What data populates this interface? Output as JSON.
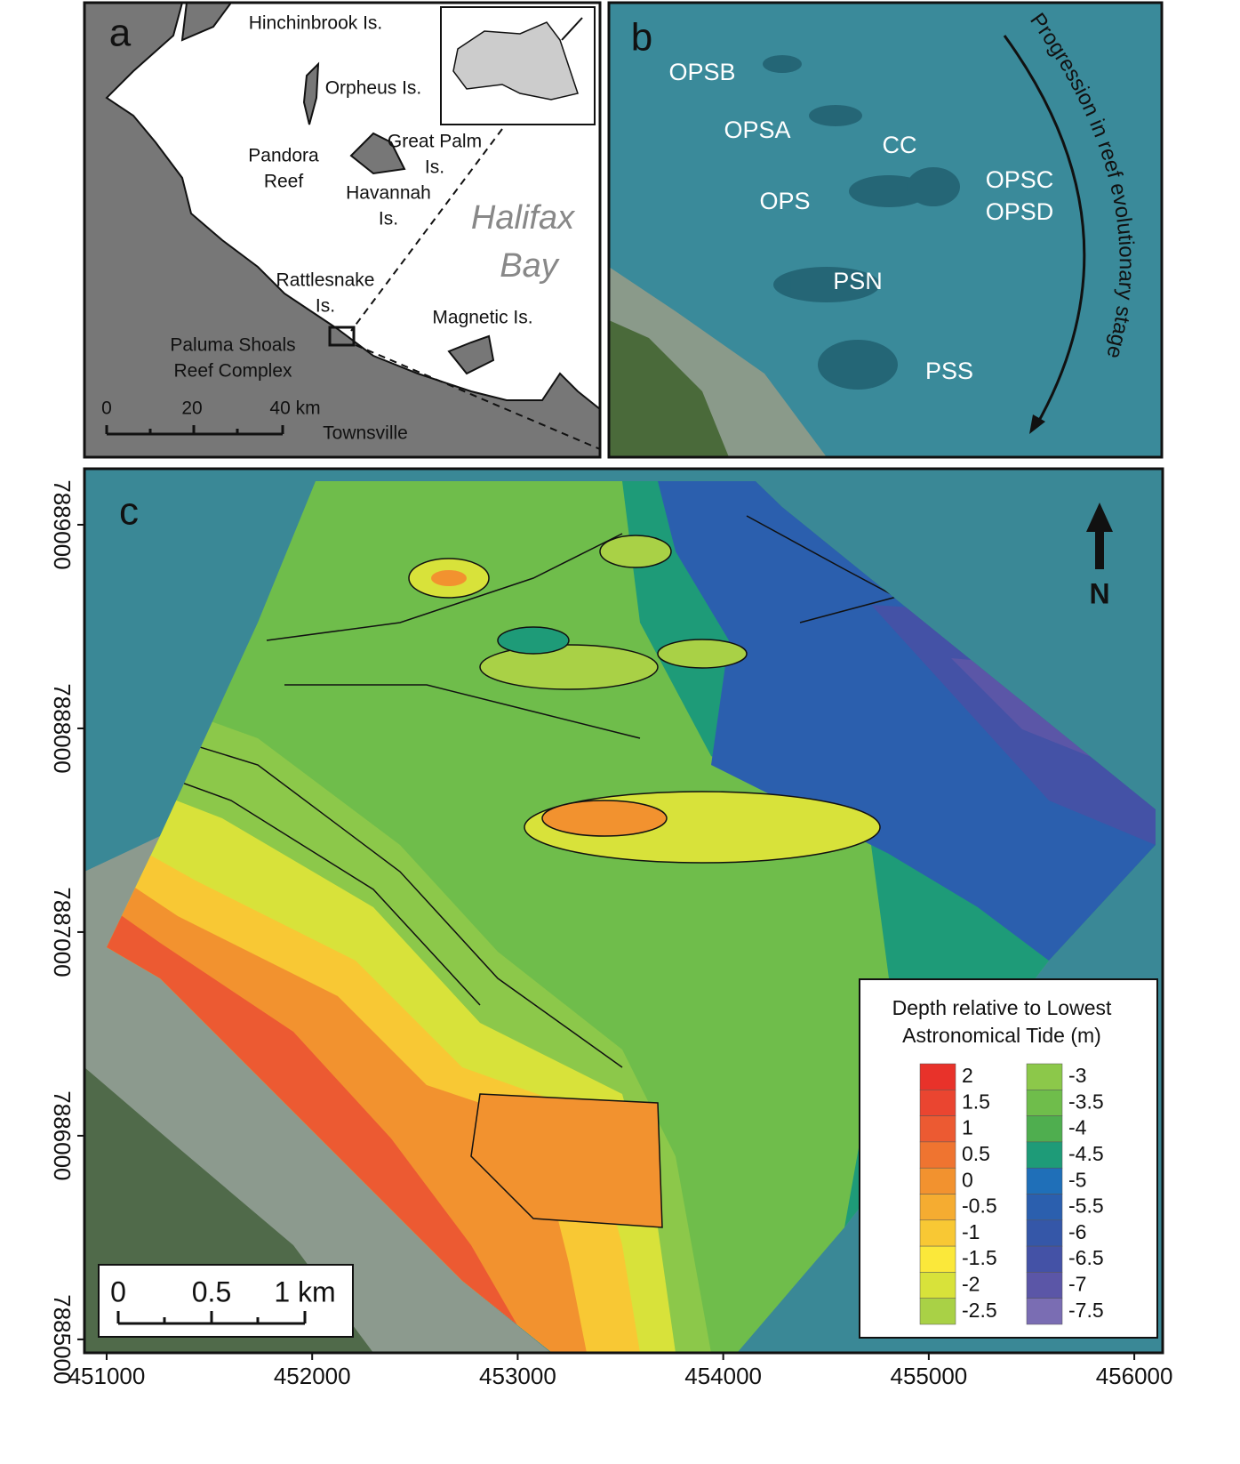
{
  "panel_a": {
    "label": "a",
    "places": [
      {
        "lines": [
          "Hinchinbrook Is."
        ]
      },
      {
        "lines": [
          "Orpheus Is."
        ]
      },
      {
        "lines": [
          "Great Palm",
          "Is."
        ]
      },
      {
        "lines": [
          "Pandora",
          "Reef"
        ]
      },
      {
        "lines": [
          "Havannah",
          "Is."
        ]
      },
      {
        "lines": [
          "Rattlesnake",
          "Is."
        ]
      },
      {
        "lines": [
          "Magnetic Is."
        ]
      },
      {
        "lines": [
          "Paluma Shoals",
          "Reef Complex"
        ]
      },
      {
        "lines": [
          "Townsville"
        ]
      }
    ],
    "bay": [
      "Halifax",
      "Bay"
    ],
    "scale_bar": [
      "0",
      "20",
      "40 km"
    ]
  },
  "panel_b": {
    "label": "b",
    "sites": [
      "OPSB",
      "OPSA",
      "CC",
      "OPS",
      "OPSC",
      "OPSD",
      "PSN",
      "PSS"
    ],
    "arrow_label": "Progression in reef evolutionary stage"
  },
  "panel_c": {
    "label": "c",
    "north": "N",
    "xlim": [
      450892,
      456138
    ],
    "ylim": [
      7884934,
      7889275
    ],
    "xticks": [
      451000,
      452000,
      453000,
      454000,
      455000,
      456000
    ],
    "yticks": [
      7885000,
      7886000,
      7887000,
      7888000,
      7889000
    ],
    "legend": {
      "title": [
        "Depth relative to Lowest",
        "Astronomical Tide (m)"
      ],
      "entries": [
        {
          "value": 2,
          "color": "#e8322a"
        },
        {
          "value": 1.5,
          "color": "#ea4530"
        },
        {
          "value": 1,
          "color": "#ec5a32"
        },
        {
          "value": 0.5,
          "color": "#ef7430"
        },
        {
          "value": 0,
          "color": "#f2922f"
        },
        {
          "value": -0.5,
          "color": "#f5ac31"
        },
        {
          "value": -1,
          "color": "#f8c834"
        },
        {
          "value": -1.5,
          "color": "#fbe83a"
        },
        {
          "value": -2,
          "color": "#d8e23a"
        },
        {
          "value": -2.5,
          "color": "#a9d146"
        },
        {
          "value": -3,
          "color": "#8cc84a"
        },
        {
          "value": -3.5,
          "color": "#6fbd4b"
        },
        {
          "value": -4,
          "color": "#4fae4f"
        },
        {
          "value": -4.5,
          "color": "#1e9b78"
        },
        {
          "value": -5,
          "color": "#1f6fb8"
        },
        {
          "value": -5.5,
          "color": "#2b5fae"
        },
        {
          "value": -6,
          "color": "#3557a8"
        },
        {
          "value": -6.5,
          "color": "#4452a6"
        },
        {
          "value": -7,
          "color": "#5b56a7"
        },
        {
          "value": -7.5,
          "color": "#7a6db3"
        }
      ]
    },
    "scale_bar": [
      "0",
      "0.5",
      "1 km"
    ]
  }
}
